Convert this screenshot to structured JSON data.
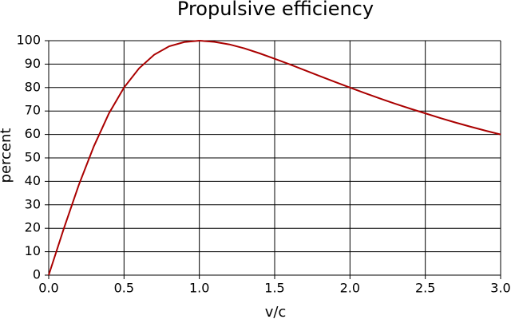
{
  "chart_data": {
    "type": "line",
    "title": "Propulsive efficiency",
    "xlabel": "v/c",
    "ylabel": "percent",
    "x": [
      0,
      0.1,
      0.2,
      0.3,
      0.4,
      0.5,
      0.6,
      0.7,
      0.8,
      0.9,
      1,
      1.1,
      1.2,
      1.3,
      1.4,
      1.5,
      1.6,
      1.7,
      1.8,
      1.9,
      2,
      2.1,
      2.2,
      2.3,
      2.4,
      2.5,
      2.6,
      2.7,
      2.8,
      2.9,
      3
    ],
    "series": [
      {
        "color": "#aa0000",
        "values": [
          0,
          19.8,
          38.5,
          55.0,
          69.0,
          80.0,
          88.2,
          94.0,
          97.6,
          99.4,
          100,
          99.5,
          98.4,
          96.7,
          94.6,
          92.3,
          89.9,
          87.4,
          84.9,
          82.4,
          80,
          77.6,
          75.3,
          73.1,
          71.0,
          69.0,
          67.0,
          65.1,
          63.3,
          61.6,
          60
        ]
      }
    ],
    "xlim": [
      0,
      3
    ],
    "xticks": [
      {
        "value": 0,
        "label": "0.0"
      },
      0.5,
      {
        "value": 1,
        "label": "1.0"
      },
      1.5,
      {
        "value": 2,
        "label": "2.0"
      },
      2.5,
      {
        "value": 3,
        "label": "3.0"
      }
    ],
    "ylim": [
      0,
      100
    ],
    "yticks": [
      0,
      10,
      20,
      30,
      40,
      50,
      60,
      70,
      80,
      90,
      100
    ],
    "grid": true
  }
}
